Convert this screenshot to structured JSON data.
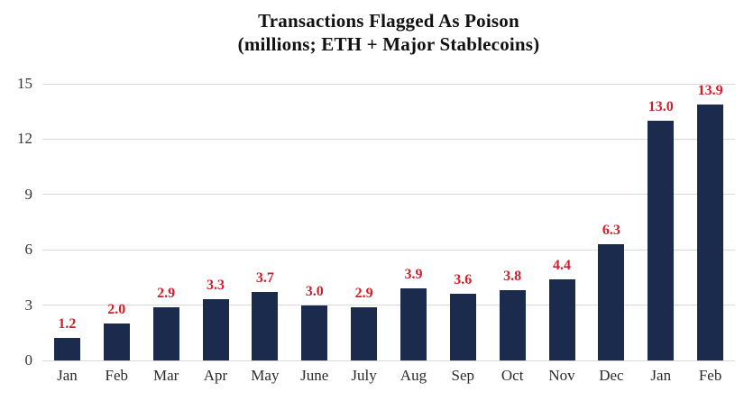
{
  "title": {
    "line1": "Transactions Flagged As Poison",
    "line2": "(millions; ETH + Major Stablecoins)"
  },
  "chart_data": {
    "type": "bar",
    "title": "Transactions Flagged As Poison (millions; ETH + Major Stablecoins)",
    "categories": [
      "Jan",
      "Feb",
      "Mar",
      "Apr",
      "May",
      "June",
      "July",
      "Aug",
      "Sep",
      "Oct",
      "Nov",
      "Dec",
      "Jan",
      "Feb"
    ],
    "values": [
      1.2,
      2.0,
      2.9,
      3.3,
      3.7,
      3.0,
      2.9,
      3.9,
      3.6,
      3.8,
      4.4,
      6.3,
      13.0,
      13.9
    ],
    "value_labels": [
      "1.2",
      "2.0",
      "2.9",
      "3.3",
      "3.7",
      "3.0",
      "2.9",
      "3.9",
      "3.6",
      "3.8",
      "4.4",
      "6.3",
      "13.0",
      "13.9"
    ],
    "xlabel": "",
    "ylabel": "",
    "ylim": [
      0,
      15
    ],
    "yticks": [
      0,
      3,
      6,
      9,
      12,
      15
    ],
    "grid": true,
    "legend": false,
    "colors": {
      "bar": "#1a2b4d",
      "value_label": "#d21e2b",
      "gridline": "#d9d9d9",
      "axis_text": "#333333",
      "background": "#ffffff"
    }
  }
}
